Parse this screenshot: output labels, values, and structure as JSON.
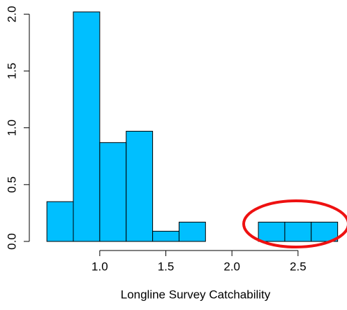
{
  "chart_data": {
    "type": "histogram",
    "x_label": "Longline Survey Catchability",
    "bins": [
      0.6,
      0.8,
      1.0,
      1.2,
      1.4,
      1.6,
      1.8,
      2.0,
      2.2,
      2.4,
      2.6,
      2.8
    ],
    "values": [
      0.35,
      2.02,
      0.87,
      0.97,
      0.09,
      0.17,
      0,
      0,
      0.17,
      0.17,
      0.17
    ],
    "color": "#00bfff",
    "xlim": [
      0.52,
      2.86
    ],
    "ylim": [
      -0.08,
      2.1
    ],
    "xticks": [
      {
        "value": 1,
        "label": "1.0"
      },
      1.5,
      {
        "value": 2,
        "label": "2.0"
      },
      2.5
    ],
    "yticks": [
      {
        "value": 0,
        "label": "0.0"
      },
      0.5,
      {
        "value": 1,
        "label": "1.0"
      },
      1.5,
      {
        "value": 2,
        "label": "2.0"
      }
    ],
    "grid": false
  }
}
